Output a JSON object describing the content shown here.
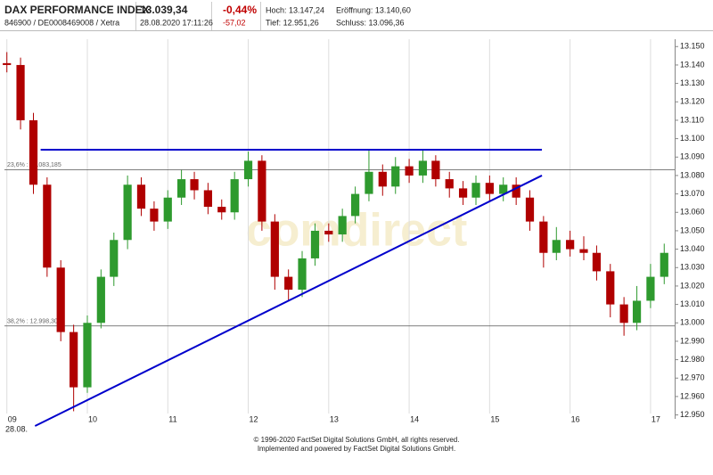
{
  "header": {
    "name": "DAX PERFORMANCE INDEX",
    "ids": "846900 / DE0008469008 / Xetra",
    "price": "13.039,34",
    "timestamp": "28.08.2020 17:11:26",
    "change_pct": "-0,44%",
    "change_abs": "-57,02",
    "high": "Hoch: 13.147,24",
    "open": "Eröffnung: 13.140,60",
    "low": "Tief: 12.951,26",
    "close": "Schluss: 13.096,36"
  },
  "chart_data": {
    "type": "candlestick",
    "watermark": "comdirect",
    "date_label": "28.08.",
    "x": [
      9.0,
      9.17,
      9.33,
      9.5,
      9.67,
      9.83,
      10.0,
      10.17,
      10.33,
      10.5,
      10.67,
      10.83,
      11.0,
      11.17,
      11.33,
      11.5,
      11.67,
      11.83,
      12.0,
      12.17,
      12.33,
      12.5,
      12.67,
      12.83,
      13.0,
      13.17,
      13.33,
      13.5,
      13.67,
      13.83,
      14.0,
      14.17,
      14.33,
      14.5,
      14.67,
      14.83,
      15.0,
      15.17,
      15.33,
      15.5,
      15.67,
      15.83,
      16.0,
      16.17,
      16.33,
      16.5,
      16.67,
      16.83,
      17.0,
      17.17
    ],
    "open": [
      13141,
      13140,
      13110,
      13075,
      13030,
      12995,
      12965,
      13000,
      13025,
      13045,
      13075,
      13062,
      13055,
      13068,
      13078,
      13072,
      13063,
      13060,
      13078,
      13088,
      13055,
      13025,
      13018,
      13035,
      13050,
      13048,
      13058,
      13070,
      13082,
      13074,
      13085,
      13080,
      13088,
      13078,
      13073,
      13068,
      13076,
      13070,
      13075,
      13068,
      13055,
      13038,
      13045,
      13040,
      13038,
      13028,
      13010,
      13000,
      13012,
      13025
    ],
    "high": [
      13147,
      13144,
      13114,
      13079,
      13034,
      12999,
      13004,
      13029,
      13049,
      13080,
      13079,
      13066,
      13072,
      13083,
      13082,
      13076,
      13067,
      13082,
      13093,
      13091,
      13059,
      13029,
      13039,
      13054,
      13054,
      13062,
      13074,
      13094,
      13086,
      13090,
      13089,
      13094,
      13091,
      13082,
      13077,
      13080,
      13080,
      13079,
      13079,
      13072,
      13058,
      13052,
      13050,
      13047,
      13042,
      13032,
      13014,
      13020,
      13032,
      13043
    ],
    "low": [
      13136,
      13105,
      13070,
      13025,
      12990,
      12952,
      12962,
      12997,
      13020,
      13040,
      13058,
      13050,
      13051,
      13064,
      13067,
      13059,
      13056,
      13056,
      13074,
      13050,
      13018,
      13012,
      13014,
      13031,
      13044,
      13044,
      13054,
      13066,
      13069,
      13070,
      13076,
      13076,
      13074,
      13068,
      13064,
      13064,
      13066,
      13066,
      13064,
      13050,
      13030,
      13034,
      13036,
      13034,
      13023,
      13003,
      12993,
      12996,
      13008,
      13021
    ],
    "close": [
      13140,
      13110,
      13075,
      13030,
      12995,
      12965,
      13000,
      13025,
      13045,
      13075,
      13062,
      13055,
      13068,
      13078,
      13072,
      13063,
      13060,
      13078,
      13088,
      13055,
      13025,
      13018,
      13035,
      13050,
      13048,
      13058,
      13070,
      13082,
      13074,
      13085,
      13080,
      13088,
      13078,
      13073,
      13068,
      13076,
      13070,
      13075,
      13068,
      13055,
      13038,
      13045,
      13040,
      13038,
      13028,
      13010,
      13000,
      13012,
      13025,
      13038
    ],
    "up_color": "#2e9a2e",
    "down_color": "#b00000",
    "xlim": [
      8.97,
      17.3
    ],
    "xticks": [
      {
        "value": 9,
        "label": "09"
      },
      10,
      11,
      12,
      13,
      14,
      15,
      16,
      17
    ],
    "ylim": [
      12944,
      13154
    ],
    "yticks": [
      {
        "value": 12950,
        "label": "12.950"
      },
      {
        "value": 12960,
        "label": "12.960"
      },
      {
        "value": 12970,
        "label": "12.970"
      },
      {
        "value": 12980,
        "label": "12.980"
      },
      {
        "value": 12990,
        "label": "12.990"
      },
      {
        "value": 13000,
        "label": "13.000"
      },
      {
        "value": 13010,
        "label": "13.010"
      },
      {
        "value": 13020,
        "label": "13.020"
      },
      {
        "value": 13030,
        "label": "13.030"
      },
      {
        "value": 13040,
        "label": "13.040"
      },
      {
        "value": 13050,
        "label": "13.050"
      },
      {
        "value": 13060,
        "label": "13.060"
      },
      {
        "value": 13070,
        "label": "13.070"
      },
      {
        "value": 13080,
        "label": "13.080"
      },
      {
        "value": 13090,
        "label": "13.090"
      },
      {
        "value": 13100,
        "label": "13.100"
      },
      {
        "value": 13110,
        "label": "13.110"
      },
      {
        "value": 13120,
        "label": "13.120"
      },
      {
        "value": 13130,
        "label": "13.130"
      },
      {
        "value": 13140,
        "label": "13.140"
      },
      {
        "value": 13150,
        "label": "13.150"
      }
    ],
    "grid": true,
    "reference_lines": [
      {
        "value": 13083.185,
        "label": "23,6% : 13.083,185"
      },
      {
        "value": 12998.309,
        "label": "38,2% : 12.998,309"
      }
    ],
    "trendlines": [
      {
        "x": [
          9.42,
          15.65
        ],
        "y": [
          13094,
          13094
        ]
      },
      {
        "x": [
          9.35,
          15.65
        ],
        "y": [
          12944,
          13080
        ]
      }
    ],
    "trendline_color": "#0000cc"
  },
  "footer": {
    "line1": "© 1996-2020 FactSet Digital Solutions GmbH, all rights reserved.",
    "line2": "Implemented and powered by FactSet Digital Solutions GmbH."
  }
}
